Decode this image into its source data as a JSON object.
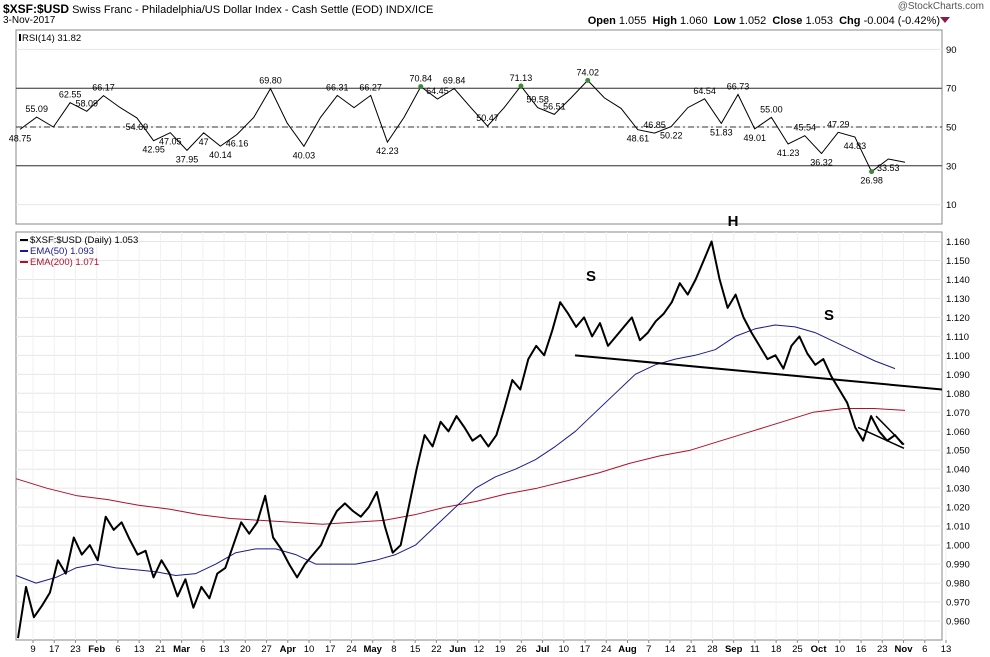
{
  "header": {
    "symbol": "$XSF:$USD",
    "name": "Swiss Franc - Philadelphia/US Dollar Index - Cash Settle (EOD) INDX/ICE",
    "date": "3-Nov-2017",
    "open_label": "Open",
    "open": "1.055",
    "high_label": "High",
    "high": "1.060",
    "low_label": "Low",
    "low": "1.052",
    "close_label": "Close",
    "close": "1.053",
    "chg_label": "Chg",
    "chg": "-0.004 (-0.42%)",
    "logo": "@StockCharts.com"
  },
  "colors": {
    "price": "#000000",
    "ema50": "#1a1a8c",
    "ema200": "#b0102a",
    "grid": "#e6e6e6"
  },
  "chart_data": [
    {
      "type": "line",
      "title": "RSI(14) 31.82",
      "ylim": [
        0,
        100
      ],
      "y_ticks": [
        10,
        30,
        50,
        70,
        90
      ],
      "reference_lines": [
        30,
        50,
        70
      ],
      "series": [
        {
          "name": "RSI(14)",
          "values": [
            48.75,
            55.09,
            50,
            62.55,
            58.09,
            66.17,
            60,
            54.69,
            42.95,
            47.05,
            37.95,
            47,
            40.14,
            46.16,
            55,
            69.8,
            52,
            40.03,
            55,
            66.31,
            60,
            66.27,
            42.23,
            55,
            70.84,
            64.45,
            69.84,
            60,
            50.47,
            60,
            71.13,
            60,
            56.51,
            65,
            74.02,
            65,
            59.58,
            48.61,
            46.85,
            50.22,
            60,
            64.54,
            51.83,
            66.73,
            49.01,
            55,
            41.23,
            45.54,
            36.32,
            47.29,
            44.83,
            26.98,
            33.53,
            31.82
          ]
        }
      ],
      "annotations": [
        "55.09",
        "48.75",
        "62.55",
        "58.09",
        "66.17",
        "54.69",
        "42.95",
        "47.05",
        "37.95",
        "47",
        "40.14",
        "46.16",
        "69.80",
        "40.03",
        "66.31",
        "66.27",
        "42.23",
        "70.84",
        "64.45",
        "69.84",
        "50.47",
        "71.13",
        "56.51",
        "74.02",
        "59.58",
        "48.61",
        "46.85",
        "50.22",
        "64.54",
        "51.83",
        "66.73",
        "49.01",
        "55.00",
        "41.23",
        "45.54",
        "36.32",
        "47.29",
        "44.83",
        "26.98",
        "33.53"
      ]
    },
    {
      "type": "line",
      "title": "$XSF:$USD (Daily) 1.053",
      "ylim": [
        0.95,
        1.165
      ],
      "y_ticks": [
        "0.960",
        "0.970",
        "0.980",
        "0.990",
        "1.000",
        "1.010",
        "1.020",
        "1.030",
        "1.040",
        "1.050",
        "1.060",
        "1.070",
        "1.080",
        "1.090",
        "1.100",
        "1.110",
        "1.120",
        "1.130",
        "1.140",
        "1.150",
        "1.160"
      ],
      "x_ticks": [
        "9",
        "17",
        "23",
        "Feb",
        "6",
        "13",
        "21",
        "Mar",
        "6",
        "13",
        "20",
        "27",
        "Apr",
        "10",
        "17",
        "24",
        "May",
        "8",
        "15",
        "22",
        "Jun",
        "12",
        "19",
        "26",
        "Jul",
        "10",
        "17",
        "24",
        "Aug",
        "7",
        "14",
        "21",
        "28",
        "Sep",
        "11",
        "18",
        "25",
        "Oct",
        "10",
        "16",
        "23",
        "Nov",
        "6",
        "13"
      ],
      "x_tick_bold": [
        "Feb",
        "Mar",
        "Apr",
        "May",
        "Jun",
        "Jul",
        "Aug",
        "Sep",
        "Oct",
        "Nov"
      ],
      "series": [
        {
          "name": "$XSF:$USD (Daily) 1.053",
          "values": [
            0.951,
            0.978,
            0.962,
            0.968,
            0.975,
            0.992,
            0.985,
            1.004,
            0.995,
            1.0,
            0.992,
            1.015,
            1.008,
            1.012,
            1.003,
            0.995,
            0.997,
            0.983,
            0.992,
            0.985,
            0.973,
            0.982,
            0.967,
            0.978,
            0.972,
            0.985,
            0.988,
            1.0,
            1.012,
            1.006,
            1.012,
            1.026,
            1.004,
            0.998,
            0.99,
            0.983,
            0.99,
            0.995,
            1.0,
            1.01,
            1.018,
            1.022,
            1.018,
            1.015,
            1.02,
            1.028,
            1.01,
            0.996,
            1.0,
            1.02,
            1.04,
            1.058,
            1.052,
            1.065,
            1.06,
            1.068,
            1.062,
            1.055,
            1.058,
            1.052,
            1.058,
            1.072,
            1.087,
            1.082,
            1.098,
            1.105,
            1.1,
            1.113,
            1.128,
            1.122,
            1.115,
            1.12,
            1.11,
            1.117,
            1.105,
            1.11,
            1.115,
            1.12,
            1.108,
            1.112,
            1.118,
            1.122,
            1.128,
            1.138,
            1.132,
            1.14,
            1.15,
            1.16,
            1.14,
            1.125,
            1.132,
            1.12,
            1.112,
            1.105,
            1.098,
            1.1,
            1.093,
            1.105,
            1.11,
            1.101,
            1.095,
            1.098,
            1.089,
            1.082,
            1.075,
            1.062,
            1.055,
            1.068,
            1.06,
            1.055,
            1.058,
            1.053
          ]
        },
        {
          "name": "EMA(50) 1.093",
          "values": [
            0.984,
            0.98,
            0.983,
            0.988,
            0.99,
            0.988,
            0.987,
            0.986,
            0.984,
            0.985,
            0.99,
            0.996,
            0.998,
            0.998,
            0.995,
            0.99,
            0.99,
            0.99,
            0.992,
            0.995,
            1.0,
            1.01,
            1.02,
            1.03,
            1.036,
            1.04,
            1.045,
            1.052,
            1.06,
            1.07,
            1.08,
            1.09,
            1.095,
            1.098,
            1.1,
            1.103,
            1.11,
            1.114,
            1.116,
            1.115,
            1.112,
            1.107,
            1.102,
            1.097,
            1.093
          ]
        },
        {
          "name": "EMA(200) 1.071",
          "values": [
            1.035,
            1.03,
            1.026,
            1.024,
            1.021,
            1.019,
            1.016,
            1.014,
            1.013,
            1.012,
            1.011,
            1.012,
            1.013,
            1.016,
            1.02,
            1.023,
            1.027,
            1.03,
            1.034,
            1.038,
            1.043,
            1.047,
            1.05,
            1.055,
            1.06,
            1.065,
            1.07,
            1.072,
            1.072,
            1.071
          ]
        }
      ],
      "trendlines": 3,
      "annotations": [
        "S",
        "H",
        "S"
      ]
    }
  ]
}
